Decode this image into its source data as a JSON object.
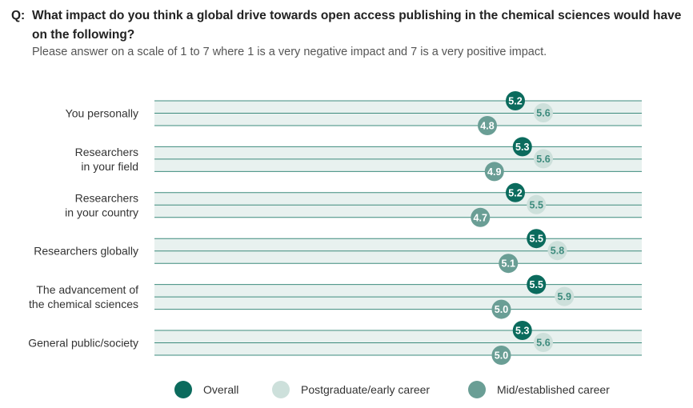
{
  "question": {
    "prefix": "Q:",
    "text": "What impact do you think a global drive towards open access publishing in the chemical sciences would have on the following?",
    "instruction": "Please answer on a scale of 1 to 7 where 1 is a very negative impact and 7 is a very positive impact."
  },
  "chart_data": {
    "type": "scatter",
    "categories": [
      [
        "You personally"
      ],
      [
        "Researchers",
        "in your field"
      ],
      [
        "Researchers",
        "in your country"
      ],
      [
        "Researchers globally"
      ],
      [
        "The advancement of",
        "the chemical sciences"
      ],
      [
        "General public/society"
      ]
    ],
    "series": [
      {
        "name": "Overall",
        "color": "#0b6b5d",
        "label_color": "#ffffff",
        "values": [
          5.2,
          5.3,
          5.2,
          5.5,
          5.5,
          5.3
        ]
      },
      {
        "name": "Postgraduate/early career",
        "color": "#cde0db",
        "label_color": "#3d8b7d",
        "values": [
          5.6,
          5.6,
          5.5,
          5.8,
          5.9,
          5.6
        ]
      },
      {
        "name": "Mid/established career",
        "color": "#6a9e95",
        "label_color": "#ffffff",
        "values": [
          4.8,
          4.9,
          4.7,
          5.1,
          5.0,
          5.0
        ]
      }
    ],
    "xlim": [
      1,
      7
    ],
    "grid": true,
    "legend": "bottom"
  },
  "colors": {
    "row_band": "#e8f1ef",
    "row_line": "#3d8b7d"
  }
}
